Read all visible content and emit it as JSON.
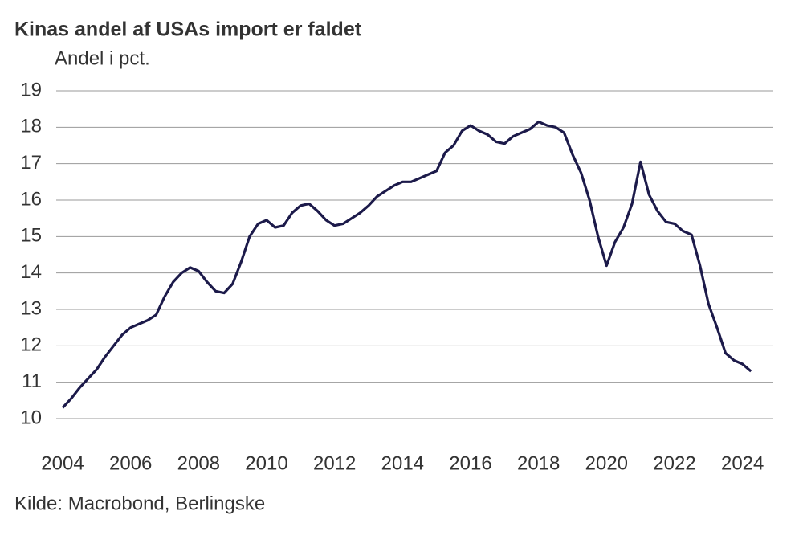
{
  "chart_data": {
    "type": "line",
    "title": "Kinas andel af USAs import er faldet",
    "subtitle": "Andel i pct.",
    "source": "Kilde: Macrobond, Berlingske",
    "x": [
      2004,
      2004.25,
      2004.5,
      2004.75,
      2005,
      2005.25,
      2005.5,
      2005.75,
      2006,
      2006.25,
      2006.5,
      2006.75,
      2007,
      2007.25,
      2007.5,
      2007.75,
      2008,
      2008.25,
      2008.5,
      2008.75,
      2009,
      2009.25,
      2009.5,
      2009.75,
      2010,
      2010.25,
      2010.5,
      2010.75,
      2011,
      2011.25,
      2011.5,
      2011.75,
      2012,
      2012.25,
      2012.5,
      2012.75,
      2013,
      2013.25,
      2013.5,
      2013.75,
      2014,
      2014.25,
      2014.5,
      2014.75,
      2015,
      2015.25,
      2015.5,
      2015.75,
      2016,
      2016.25,
      2016.5,
      2016.75,
      2017,
      2017.25,
      2017.5,
      2017.75,
      2018,
      2018.25,
      2018.5,
      2018.75,
      2019,
      2019.25,
      2019.5,
      2019.75,
      2020,
      2020.25,
      2020.5,
      2020.75,
      2021,
      2021.25,
      2021.5,
      2021.75,
      2022,
      2022.25,
      2022.5,
      2022.75,
      2023,
      2023.25,
      2023.5,
      2023.75,
      2024,
      2024.25
    ],
    "series": [
      {
        "color": "#1c1a4a",
        "values": [
          10.3,
          10.55,
          10.85,
          11.1,
          11.35,
          11.7,
          12.0,
          12.3,
          12.5,
          12.6,
          12.7,
          12.85,
          13.35,
          13.75,
          14.0,
          14.15,
          14.05,
          13.75,
          13.5,
          13.45,
          13.7,
          14.3,
          15.0,
          15.35,
          15.45,
          15.25,
          15.3,
          15.65,
          15.85,
          15.9,
          15.7,
          15.45,
          15.3,
          15.35,
          15.5,
          15.65,
          15.85,
          16.1,
          16.25,
          16.4,
          16.5,
          16.5,
          16.6,
          16.7,
          16.8,
          17.3,
          17.5,
          17.9,
          18.05,
          17.9,
          17.8,
          17.6,
          17.55,
          17.75,
          17.85,
          17.95,
          18.15,
          18.05,
          18.0,
          17.85,
          17.25,
          16.75,
          16.0,
          15.0,
          14.2,
          14.85,
          15.25,
          15.9,
          17.05,
          16.15,
          15.7,
          15.4,
          15.35,
          15.15,
          15.05,
          14.2,
          13.15,
          12.5,
          11.8,
          11.6,
          11.5,
          11.3
        ]
      }
    ],
    "xlim": [
      2004,
      2025
    ],
    "xticks": [
      2004,
      2006,
      2008,
      2010,
      2012,
      2014,
      2016,
      2018,
      2020,
      2022,
      2024
    ],
    "ylim": [
      10,
      19
    ],
    "yticks": [
      10,
      11,
      12,
      13,
      14,
      15,
      16,
      17,
      18,
      19
    ],
    "grid": true
  }
}
